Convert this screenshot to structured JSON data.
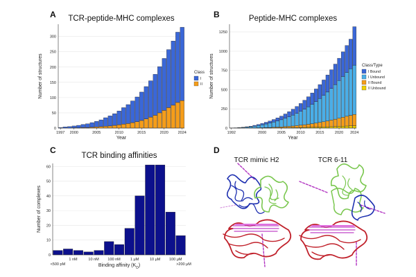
{
  "panels": {
    "a": {
      "letter": "A"
    },
    "b": {
      "letter": "B"
    },
    "c": {
      "letter": "C"
    },
    "d": {
      "letter": "D",
      "left_label": "TCR mimic H2",
      "right_label": "TCR 6-11"
    }
  },
  "chart_data": [
    {
      "id": "A",
      "type": "bar",
      "stacked": true,
      "title": "TCR-peptide-MHC complexes",
      "xlabel": "Year",
      "ylabel": "Number of structures",
      "ylim": [
        0,
        340
      ],
      "yticks": [
        0,
        50,
        100,
        150,
        200,
        250,
        300
      ],
      "xticks": [
        "1997",
        "2000",
        "2005",
        "2010",
        "2015",
        "2020",
        "2024"
      ],
      "grid": true,
      "legend": {
        "title": "Class",
        "placement": "right",
        "entries": [
          "I",
          "II"
        ]
      },
      "colors": {
        "I": "#3a67d8",
        "II": "#f59d1a"
      },
      "categories": [
        "1997",
        "1998",
        "1999",
        "2000",
        "2001",
        "2002",
        "2003",
        "2004",
        "2005",
        "2006",
        "2007",
        "2008",
        "2009",
        "2010",
        "2011",
        "2012",
        "2013",
        "2014",
        "2015",
        "2016",
        "2017",
        "2018",
        "2019",
        "2020",
        "2021",
        "2022",
        "2023",
        "2024"
      ],
      "series": [
        {
          "name": "II",
          "values": [
            0,
            0,
            0,
            1,
            1,
            2,
            2,
            3,
            4,
            5,
            6,
            7,
            9,
            11,
            13,
            15,
            18,
            21,
            25,
            30,
            36,
            42,
            50,
            58,
            67,
            75,
            84,
            90
          ]
        },
        {
          "name": "I",
          "values": [
            2,
            4,
            5,
            6,
            8,
            10,
            12,
            15,
            18,
            22,
            28,
            33,
            38,
            45,
            54,
            62,
            71,
            81,
            93,
            106,
            119,
            134,
            151,
            170,
            190,
            210,
            230,
            240
          ]
        }
      ]
    },
    {
      "id": "B",
      "type": "bar",
      "stacked": true,
      "title": "Peptide-MHC complexes",
      "xlabel": "Year",
      "ylabel": "Number of structures",
      "ylim": [
        0,
        1350
      ],
      "yticks": [
        0,
        250,
        500,
        750,
        1000,
        1250
      ],
      "xticks": [
        "1992",
        "2000",
        "2005",
        "2010",
        "2015",
        "2020",
        "2024"
      ],
      "grid": true,
      "legend": {
        "title": "Class/Type",
        "placement": "right",
        "entries": [
          "I Bound",
          "I Unbound",
          "II Bound",
          "II Unbound"
        ]
      },
      "colors": {
        "I Bound": "#3a67d8",
        "I Unbound": "#4aaee8",
        "II Bound": "#f59d1a",
        "II Unbound": "#f0d000"
      },
      "categories": [
        "1992",
        "1993",
        "1994",
        "1995",
        "1996",
        "1997",
        "1998",
        "1999",
        "2000",
        "2001",
        "2002",
        "2003",
        "2004",
        "2005",
        "2006",
        "2007",
        "2008",
        "2009",
        "2010",
        "2011",
        "2012",
        "2013",
        "2014",
        "2015",
        "2016",
        "2017",
        "2018",
        "2019",
        "2020",
        "2021",
        "2022",
        "2023",
        "2024"
      ],
      "series": [
        {
          "name": "II Unbound",
          "values": [
            0,
            0,
            0,
            0,
            0,
            0,
            1,
            1,
            1,
            2,
            2,
            3,
            3,
            4,
            5,
            5,
            6,
            7,
            8,
            9,
            10,
            11,
            12,
            14,
            15,
            17,
            19,
            21,
            23,
            25,
            27,
            29,
            31
          ]
        },
        {
          "name": "II Bound",
          "values": [
            0,
            0,
            0,
            0,
            1,
            1,
            2,
            3,
            4,
            5,
            6,
            8,
            10,
            12,
            15,
            18,
            21,
            25,
            30,
            35,
            40,
            46,
            53,
            60,
            68,
            76,
            85,
            95,
            105,
            116,
            127,
            137,
            147
          ]
        },
        {
          "name": "I Unbound",
          "values": [
            2,
            3,
            5,
            8,
            12,
            17,
            23,
            30,
            38,
            47,
            57,
            68,
            80,
            93,
            108,
            124,
            141,
            160,
            180,
            202,
            226,
            252,
            280,
            310,
            342,
            376,
            412,
            450,
            490,
            530,
            570,
            605,
            640
          ]
        },
        {
          "name": "I Bound",
          "values": [
            0,
            1,
            2,
            3,
            5,
            7,
            10,
            13,
            17,
            22,
            27,
            33,
            40,
            47,
            56,
            66,
            77,
            89,
            102,
            116,
            131,
            147,
            164,
            182,
            201,
            221,
            243,
            266,
            290,
            320,
            350,
            385,
            500
          ]
        }
      ]
    },
    {
      "id": "C",
      "type": "bar",
      "title": "TCR binding affinities",
      "xlabel": "Binding affinity (K",
      "xlabel_sub": "D",
      "xlabel_end": ")",
      "ylabel": "Number of complexes",
      "ylim": [
        0,
        62
      ],
      "yticks": [
        0,
        10,
        20,
        30,
        40,
        50,
        60
      ],
      "xticks_upper": [
        "1 nM",
        "10 nM",
        "100 nM",
        "1 μM",
        "10 μM",
        "100 μM"
      ],
      "xticks_lower": [
        "<500 pM",
        ">200 μM"
      ],
      "grid": true,
      "color": "#0c108c",
      "values": [
        3,
        4,
        3,
        2,
        3,
        9,
        7,
        18,
        40,
        61,
        61,
        29,
        13
      ]
    }
  ]
}
